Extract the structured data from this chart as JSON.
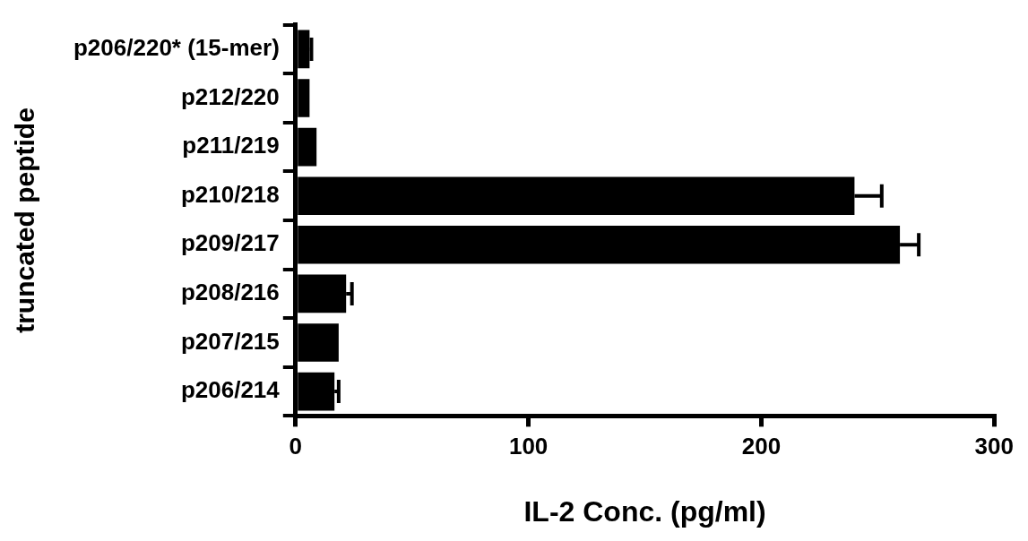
{
  "chart_data": {
    "type": "bar",
    "orientation": "horizontal",
    "categories": [
      "p206/220* (15-mer)",
      "p212/220",
      "p211/219",
      "p210/218",
      "p209/217",
      "p208/216",
      "p207/215",
      "p206/214"
    ],
    "values": [
      6,
      6,
      9,
      240,
      259.5,
      21.7,
      18.5,
      16.7
    ],
    "errors": [
      [
        6,
        6.8
      ],
      null,
      null,
      [
        240,
        251.7
      ],
      [
        259.5,
        267.6
      ],
      [
        21.7,
        24.2
      ],
      null,
      [
        16.7,
        18.5
      ]
    ],
    "color": "#000000",
    "xlim": [
      0,
      300
    ],
    "xticks": [
      0,
      100,
      200,
      300
    ],
    "xlabel": "IL-2 Conc. (pg/ml)",
    "ylabel": "truncated peptide",
    "grid": false,
    "legend": false
  }
}
